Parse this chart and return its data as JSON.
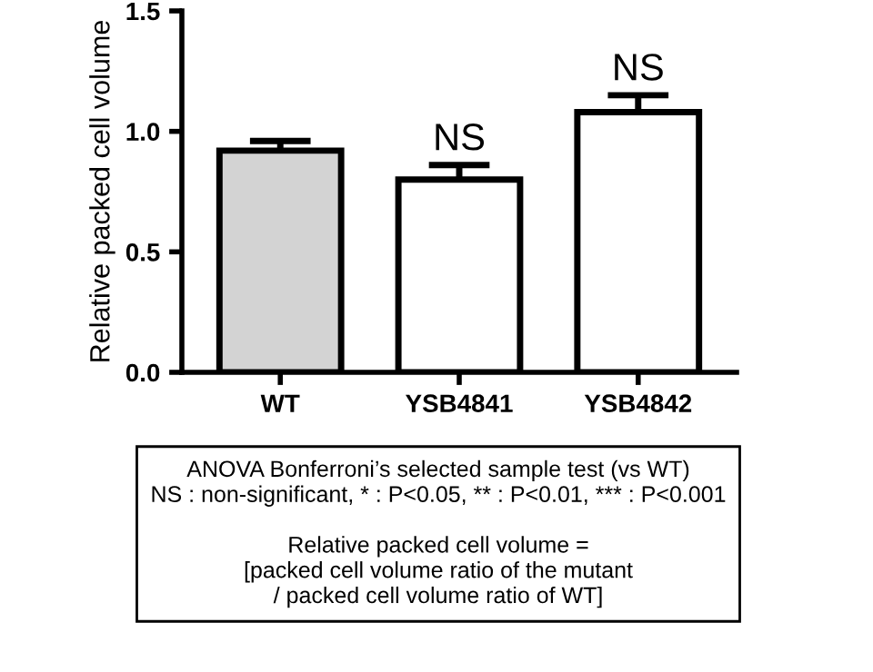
{
  "chart_data": {
    "type": "bar",
    "ylabel": "Relative packed cell volume",
    "categories": [
      "WT",
      "YSB4841",
      "YSB4842"
    ],
    "values": [
      0.92,
      0.8,
      1.08
    ],
    "errors": [
      0.04,
      0.06,
      0.07
    ],
    "colors": [
      "#d3d3d3",
      "#ffffff",
      "#ffffff"
    ],
    "ylim": [
      0,
      1.5
    ],
    "yticks": [
      {
        "value": 0,
        "label": "0.0"
      },
      {
        "value": 0.5,
        "label": "0.5"
      },
      {
        "value": 1.0,
        "label": "1.0"
      },
      {
        "value": 1.5,
        "label": "1.5"
      }
    ],
    "grid": false,
    "annotations": [
      {
        "text": "NS",
        "x": "YSB4841",
        "y": 0.86
      },
      {
        "text": "NS",
        "x": "YSB4842",
        "y": 1.15
      },
      "ANOVA Bonferroni’s selected sample test (vs WT)\nNS : non-significant, * : P<0.05, ** : P<0.01, *** : P<0.001\n\nRelative packed cell volume =\n[packed cell volume ratio of the mutant\n/ packed cell volume ratio of WT]"
    ]
  }
}
